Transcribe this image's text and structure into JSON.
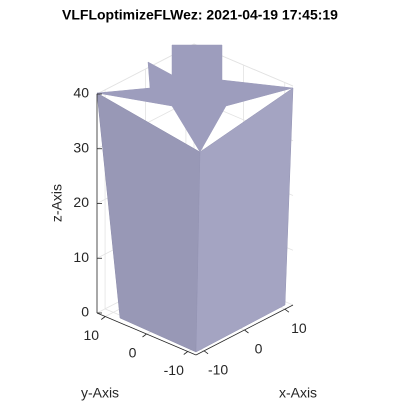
{
  "chart_data": {
    "type": "surface3d",
    "title": "VLFLoptimizeFLWez: 2021-04-19 17:45:19",
    "x_label": "x-Axis",
    "y_label": "y-Axis",
    "z_label": "z-Axis",
    "xlim": [
      -12,
      12
    ],
    "ylim": [
      -12,
      12
    ],
    "zlim": [
      0,
      40
    ],
    "xticks": [
      -10,
      0,
      10
    ],
    "yticks": [
      -10,
      0,
      10
    ],
    "zticks": [
      0,
      10,
      20,
      30,
      40
    ],
    "grid": true,
    "color": "#9d9dbd"
  }
}
